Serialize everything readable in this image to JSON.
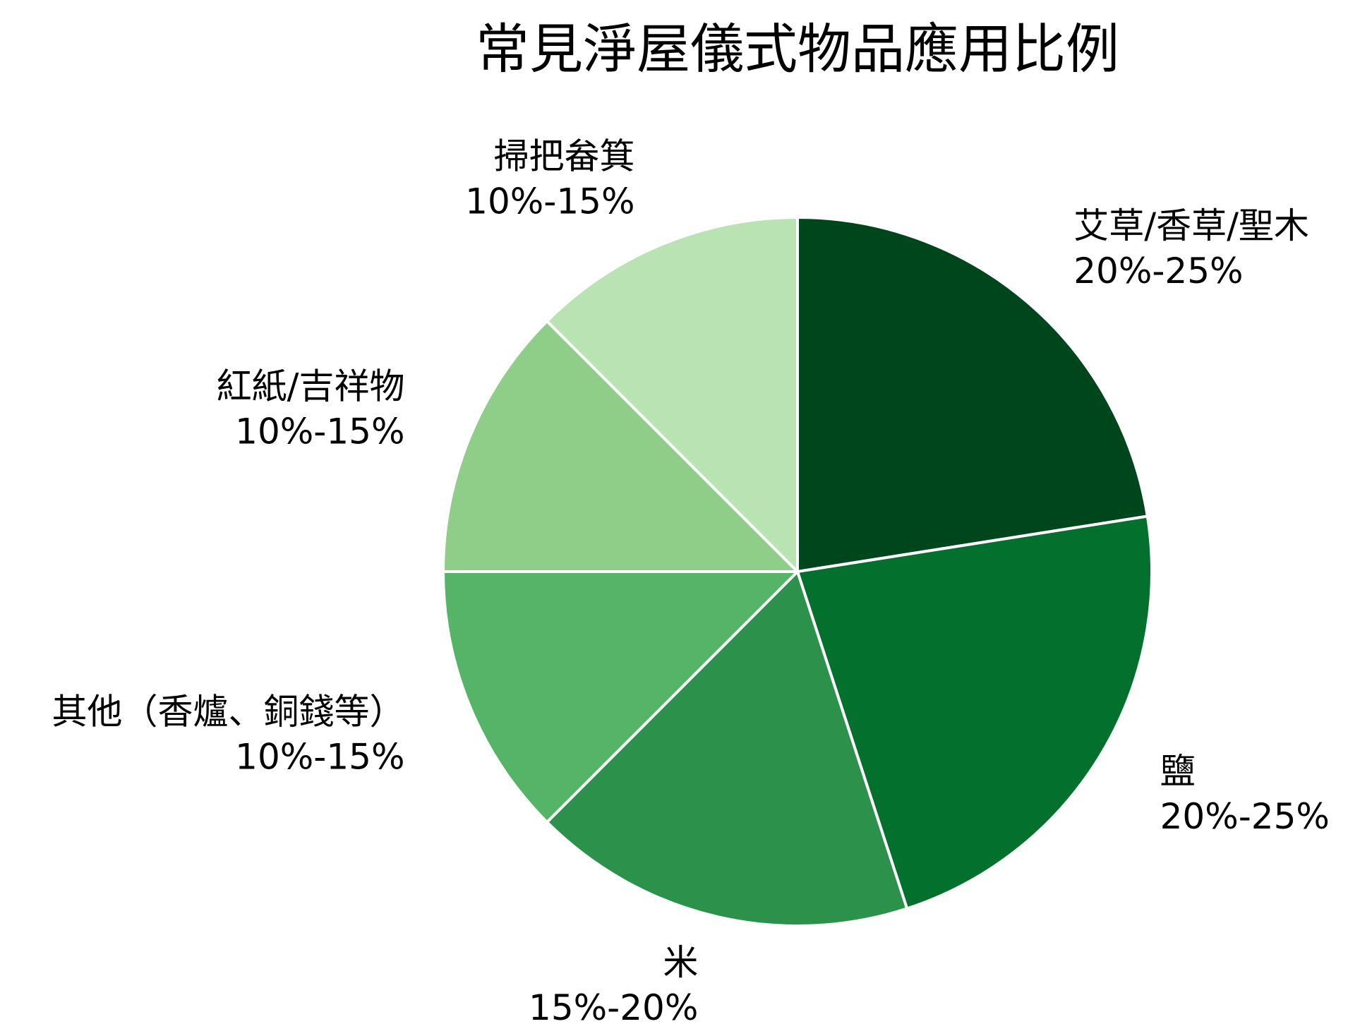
{
  "chart_data": {
    "type": "pie",
    "title": "常見淨屋儀式物品應用比例",
    "start_angle_deg": 90,
    "direction": "clockwise",
    "edge_color": "#ffffff",
    "slices": [
      {
        "label": "艾草/香草/聖木",
        "value_text": "20%-25%",
        "value": 22.5,
        "color": "#00461c"
      },
      {
        "label": "鹽",
        "value_text": "20%-25%",
        "value": 22.5,
        "color": "#03702e"
      },
      {
        "label": "米",
        "value_text": "15%-20%",
        "value": 17.5,
        "color": "#2c924b"
      },
      {
        "label": "其他（香爐、銅錢等）",
        "value_text": "10%-15%",
        "value": 12.5,
        "color": "#55b467"
      },
      {
        "label": "紅紙/吉祥物",
        "value_text": "10%-15%",
        "value": 12.5,
        "color": "#8ece88"
      },
      {
        "label": "掃把畚箕",
        "value_text": "10%-15%",
        "value": 12.5,
        "color": "#b9e3b2"
      }
    ]
  }
}
